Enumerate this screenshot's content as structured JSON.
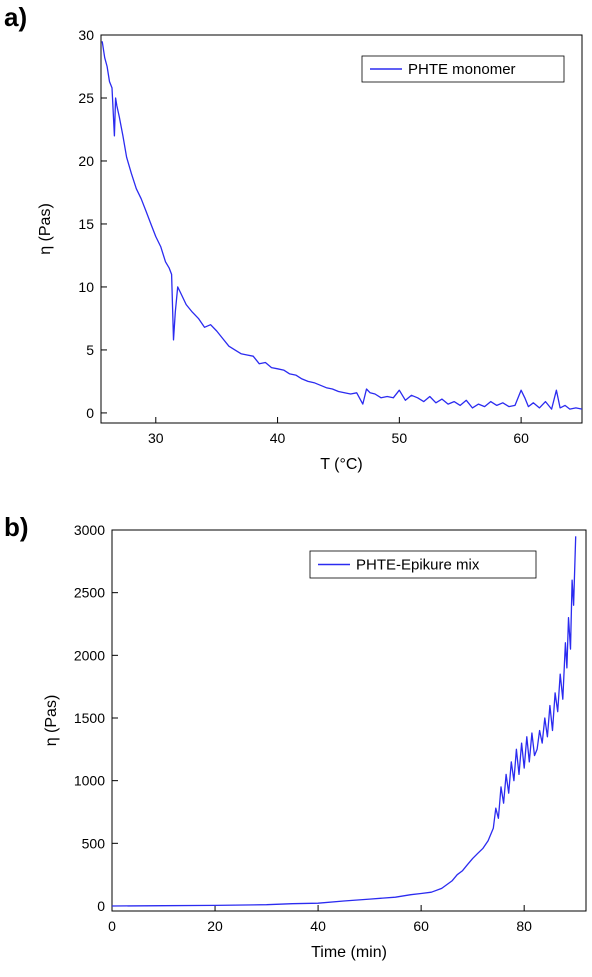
{
  "panels": {
    "a_label": "a)",
    "b_label": "b)"
  },
  "chart_data": [
    {
      "type": "line",
      "title": "",
      "xlabel": "T (°C)",
      "ylabel": "η (Pas)",
      "xlim": [
        25.5,
        65
      ],
      "ylim": [
        -0.8,
        30
      ],
      "xticks": [
        30,
        40,
        50,
        60
      ],
      "yticks": [
        0,
        5,
        10,
        15,
        20,
        25,
        30
      ],
      "grid": false,
      "legend_position": "top-right",
      "color": "#2b2bf0",
      "series": [
        {
          "name": "PHTE monomer",
          "x": [
            25.6,
            25.8,
            26.0,
            26.2,
            26.4,
            26.6,
            26.7,
            26.8,
            27.0,
            27.3,
            27.6,
            28.0,
            28.4,
            28.8,
            29.2,
            29.6,
            30.0,
            30.4,
            30.8,
            31.1,
            31.3,
            31.45,
            31.6,
            31.8,
            32.0,
            32.5,
            33.0,
            33.5,
            34.0,
            34.5,
            35.0,
            35.5,
            36.0,
            36.5,
            37.0,
            37.5,
            38.0,
            38.5,
            39.0,
            39.5,
            40.0,
            40.5,
            41.0,
            41.5,
            42.0,
            42.5,
            43.0,
            43.5,
            44.0,
            44.5,
            45.0,
            45.5,
            46.0,
            46.5,
            47.0,
            47.3,
            47.6,
            48.0,
            48.5,
            49.0,
            49.5,
            50.0,
            50.5,
            51.0,
            51.5,
            52.0,
            52.5,
            53.0,
            53.5,
            54.0,
            54.5,
            55.0,
            55.5,
            56.0,
            56.5,
            57.0,
            57.5,
            58.0,
            58.5,
            59.0,
            59.5,
            60.0,
            60.3,
            60.6,
            61.0,
            61.5,
            62.0,
            62.5,
            62.9,
            63.2,
            63.6,
            64.0,
            64.5,
            65.0
          ],
          "y": [
            29.5,
            28.2,
            27.5,
            26.3,
            25.8,
            22.0,
            25.0,
            24.4,
            23.5,
            22.0,
            20.3,
            19.0,
            17.8,
            17.0,
            16.0,
            15.0,
            14.0,
            13.2,
            12.0,
            11.5,
            11.0,
            5.8,
            8.0,
            10.0,
            9.6,
            8.6,
            8.0,
            7.5,
            6.8,
            7.0,
            6.5,
            5.9,
            5.3,
            5.0,
            4.7,
            4.6,
            4.5,
            3.9,
            4.0,
            3.6,
            3.5,
            3.4,
            3.1,
            3.0,
            2.7,
            2.5,
            2.4,
            2.2,
            2.0,
            1.9,
            1.7,
            1.6,
            1.5,
            1.6,
            0.7,
            1.9,
            1.6,
            1.5,
            1.2,
            1.3,
            1.2,
            1.8,
            1.0,
            1.4,
            1.2,
            0.9,
            1.3,
            0.8,
            1.1,
            0.7,
            0.9,
            0.6,
            1.0,
            0.4,
            0.7,
            0.5,
            0.9,
            0.6,
            0.8,
            0.5,
            0.6,
            1.8,
            1.2,
            0.5,
            0.8,
            0.4,
            0.9,
            0.3,
            1.8,
            0.4,
            0.6,
            0.3,
            0.4,
            0.3
          ]
        }
      ]
    },
    {
      "type": "line",
      "title": "",
      "xlabel": "Time (min)",
      "ylabel": "η (Pas)",
      "xlim": [
        0,
        92
      ],
      "ylim": [
        -40,
        3000
      ],
      "xticks": [
        0,
        20,
        40,
        60,
        80
      ],
      "yticks": [
        0,
        500,
        1000,
        1500,
        2000,
        2500,
        3000
      ],
      "grid": false,
      "legend_position": "top-right",
      "color": "#2b2bf0",
      "series": [
        {
          "name": "PHTE-Epikure mix",
          "x": [
            0,
            10,
            20,
            30,
            35,
            40,
            45,
            50,
            55,
            58,
            60,
            62,
            64,
            66,
            67,
            68,
            69,
            70,
            71,
            72,
            73,
            74,
            74.5,
            75,
            75.5,
            76,
            76.5,
            77,
            77.5,
            78,
            78.5,
            79,
            79.5,
            80,
            80.5,
            81,
            81.5,
            82,
            82.5,
            83,
            83.5,
            84,
            84.5,
            85,
            85.5,
            86,
            86.5,
            87,
            87.5,
            88,
            88.3,
            88.6,
            89,
            89.3,
            89.6,
            90
          ],
          "y": [
            0,
            2,
            5,
            10,
            18,
            22,
            40,
            55,
            70,
            90,
            100,
            110,
            140,
            200,
            250,
            280,
            330,
            380,
            420,
            460,
            520,
            620,
            780,
            700,
            950,
            820,
            1050,
            900,
            1150,
            1000,
            1250,
            1050,
            1300,
            1100,
            1350,
            1150,
            1380,
            1200,
            1250,
            1400,
            1300,
            1500,
            1350,
            1600,
            1400,
            1700,
            1550,
            1850,
            1650,
            2100,
            1900,
            2300,
            2050,
            2600,
            2400,
            2950
          ]
        }
      ]
    }
  ]
}
